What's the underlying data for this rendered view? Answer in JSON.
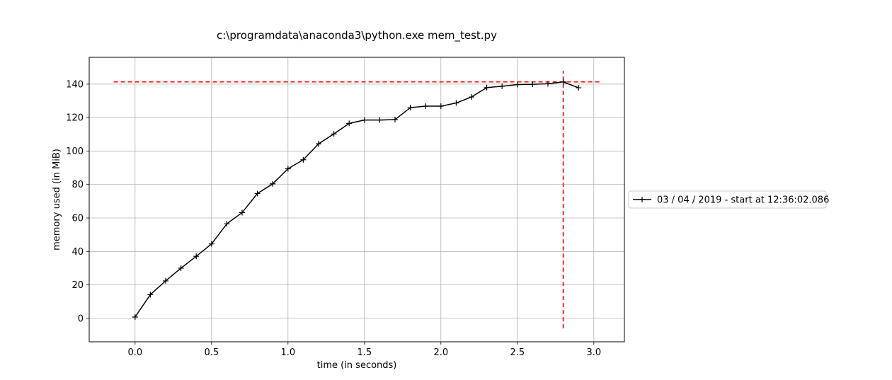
{
  "chart_data": {
    "type": "line",
    "title": "c:\\programdata\\anaconda3\\python.exe mem_test.py",
    "xlabel": "time (in seconds)",
    "ylabel": "memory used (in MiB)",
    "xlim": [
      -0.3,
      3.2
    ],
    "ylim": [
      -14,
      156
    ],
    "x_ticks": [
      0.0,
      0.5,
      1.0,
      1.5,
      2.0,
      2.5,
      3.0
    ],
    "x_tick_labels": [
      "0.0",
      "0.5",
      "1.0",
      "1.5",
      "2.0",
      "2.5",
      "3.0"
    ],
    "y_ticks": [
      0,
      20,
      40,
      60,
      80,
      100,
      120,
      140
    ],
    "y_tick_labels": [
      "0",
      "20",
      "40",
      "60",
      "80",
      "100",
      "120",
      "140"
    ],
    "grid": true,
    "legend_position": "right-outside",
    "series": [
      {
        "name": "03 / 04 / 2019 - start at 12:36:02.086",
        "color": "#000000",
        "marker": "+",
        "x": [
          0.0,
          0.1,
          0.2,
          0.3,
          0.4,
          0.5,
          0.6,
          0.7,
          0.8,
          0.9,
          1.0,
          1.1,
          1.2,
          1.3,
          1.4,
          1.5,
          1.6,
          1.7,
          1.8,
          1.9,
          2.0,
          2.1,
          2.2,
          2.3,
          2.4,
          2.5,
          2.6,
          2.7,
          2.8,
          2.9
        ],
        "y": [
          0.8,
          14.2,
          22.4,
          30.0,
          37.1,
          44.5,
          56.5,
          63.2,
          74.6,
          80.4,
          89.4,
          94.8,
          104.3,
          110.2,
          116.5,
          118.5,
          118.5,
          118.8,
          125.9,
          126.8,
          126.8,
          128.7,
          132.3,
          137.9,
          138.7,
          139.7,
          139.9,
          140.2,
          141.3,
          137.8
        ]
      }
    ],
    "max_markers": {
      "color": "#ff0000",
      "style": "dashed",
      "hline_y": 141.3,
      "hline_x_range": [
        -0.14,
        3.05
      ],
      "vline_x": 2.8,
      "vline_y_range": [
        -6,
        148
      ]
    }
  }
}
